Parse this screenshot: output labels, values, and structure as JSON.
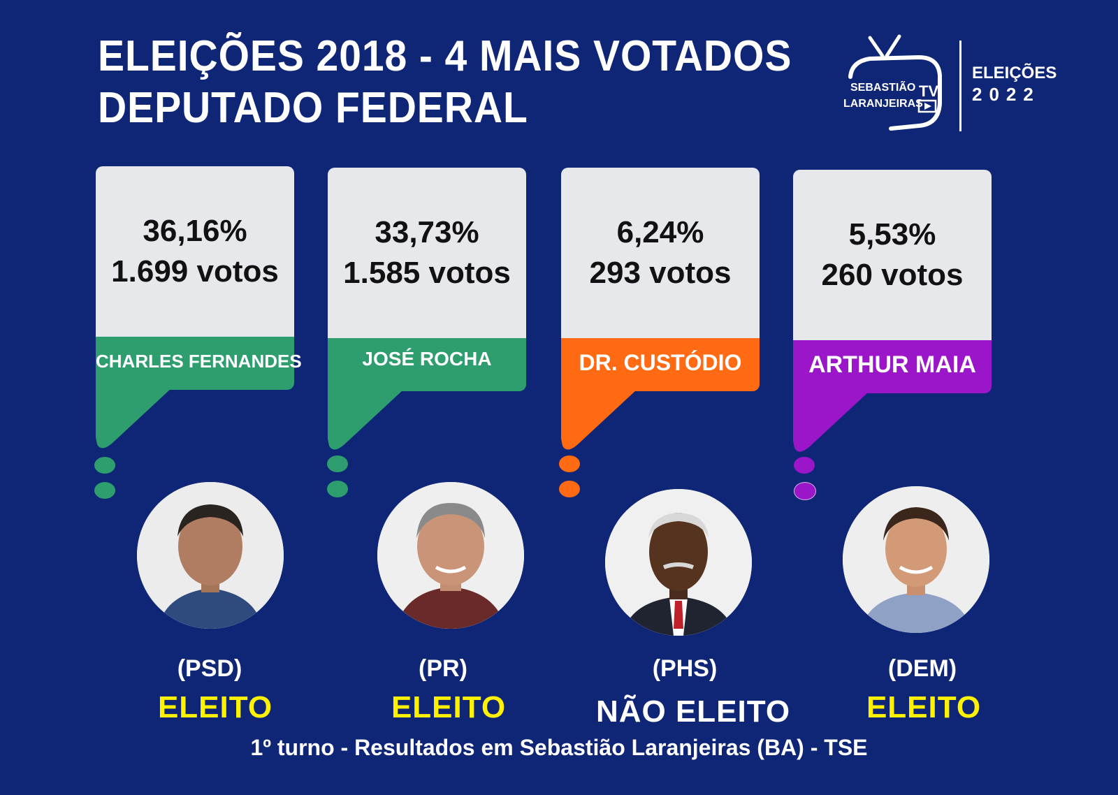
{
  "header": {
    "title_line1": "ELEIÇÕES 2018 - 4 MAIS VOTADOS",
    "title_line2": "DEPUTADO FEDERAL"
  },
  "logo": {
    "brand_line1": "SEBASTIÃO",
    "brand_line2": "LARANJEIRAS",
    "brand_tv": "TV",
    "edition_line1": "ELEIÇÕES",
    "edition_line2": "2022"
  },
  "candidates": [
    {
      "percent": "36,16%",
      "votes": "1.699 votos",
      "name": "CHARLES FERNANDES",
      "party": "(PSD)",
      "status": "ELEITO",
      "color": "#2e9e6e"
    },
    {
      "percent": "33,73%",
      "votes": "1.585 votos",
      "name": "JOSÉ ROCHA",
      "party": "(PR)",
      "status": "ELEITO",
      "color": "#2e9e6e"
    },
    {
      "percent": "6,24%",
      "votes": "293 votos",
      "name": "DR. CUSTÓDIO",
      "party": "(PHS)",
      "status": "NÃO ELEITO",
      "color": "#ff6a13"
    },
    {
      "percent": "5,53%",
      "votes": "260 votos",
      "name": "ARTHUR MAIA",
      "party": "(DEM)",
      "status": "ELEITO",
      "color": "#9b16c8"
    }
  ],
  "footer": {
    "source": "1º turno - Resultados em Sebastião Laranjeiras (BA) - TSE"
  }
}
